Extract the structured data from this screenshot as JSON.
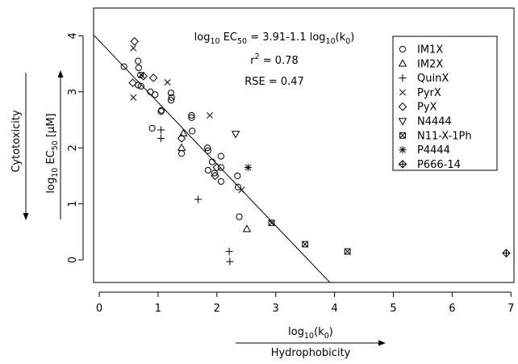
{
  "chart_data": {
    "type": "scatter",
    "xlabel": "log10(k0)",
    "ylabel": "log10 EC50 [μM]",
    "xlim": [
      0,
      7
    ],
    "ylim": [
      0,
      4
    ],
    "xticks": [
      "0",
      "1",
      "2",
      "3",
      "4",
      "5",
      "6",
      "7"
    ],
    "yticks": [
      "0",
      "1",
      "2",
      "3",
      "4"
    ],
    "grid": false,
    "legend_position": "top-right",
    "side_labels": {
      "bottom": "Hydrophobicity",
      "left": "Cytotoxicity"
    },
    "annotations": {
      "equation": "log10 EC50 = 3.91-1.1 log10(k0)",
      "r2": "r2 = 0.78",
      "rse": "RSE = 0.47"
    },
    "fit_line": {
      "intercept": 3.91,
      "slope": -1.1
    },
    "series": [
      {
        "name": "IM1X",
        "marker": "circle",
        "points": [
          [
            0.42,
            3.45
          ],
          [
            0.66,
            3.55
          ],
          [
            0.67,
            3.43
          ],
          [
            0.7,
            3.3
          ],
          [
            0.71,
            3.1
          ],
          [
            0.66,
            3.12
          ],
          [
            0.87,
            3.0
          ],
          [
            0.95,
            2.95
          ],
          [
            1.05,
            2.65
          ],
          [
            1.06,
            2.67
          ],
          [
            1.22,
            2.98
          ],
          [
            1.23,
            2.9
          ],
          [
            1.22,
            2.85
          ],
          [
            0.9,
            2.35
          ],
          [
            1.4,
            1.9
          ],
          [
            1.57,
            2.58
          ],
          [
            1.57,
            2.54
          ],
          [
            1.58,
            2.3
          ],
          [
            1.84,
            2.0
          ],
          [
            1.85,
            1.95
          ],
          [
            1.85,
            1.6
          ],
          [
            1.92,
            1.75
          ],
          [
            2.07,
            1.85
          ],
          [
            2.07,
            1.65
          ],
          [
            1.96,
            1.55
          ],
          [
            2.07,
            1.4
          ],
          [
            2.35,
            1.5
          ],
          [
            2.36,
            1.3
          ],
          [
            2.38,
            0.77
          ]
        ]
      },
      {
        "name": "IM2X",
        "marker": "triangle-up",
        "points": [
          [
            1.4,
            2.0
          ],
          [
            1.43,
            2.26
          ],
          [
            2.51,
            0.55
          ]
        ]
      },
      {
        "name": "QuinX",
        "marker": "plus",
        "points": [
          [
            1.05,
            2.32
          ],
          [
            1.05,
            2.17
          ],
          [
            1.68,
            1.08
          ],
          [
            2.21,
            0.15
          ],
          [
            2.22,
            -0.03
          ]
        ]
      },
      {
        "name": "PyrX",
        "marker": "x",
        "points": [
          [
            0.58,
            3.78
          ],
          [
            0.58,
            2.9
          ],
          [
            0.72,
            3.3
          ],
          [
            1.16,
            3.17
          ],
          [
            1.88,
            2.58
          ],
          [
            2.42,
            1.25
          ]
        ]
      },
      {
        "name": "PyX",
        "marker": "diamond",
        "points": [
          [
            0.6,
            3.9
          ],
          [
            0.57,
            3.16
          ],
          [
            0.75,
            3.28
          ],
          [
            0.92,
            3.25
          ],
          [
            1.4,
            2.17
          ],
          [
            1.97,
            1.5
          ],
          [
            2.0,
            1.65
          ]
        ]
      },
      {
        "name": "N4444",
        "marker": "triangle-down",
        "points": [
          [
            2.32,
            2.25
          ]
        ]
      },
      {
        "name": "N11-X-1Ph",
        "marker": "boxed-x",
        "points": [
          [
            2.93,
            0.66
          ],
          [
            3.5,
            0.28
          ],
          [
            4.22,
            0.15
          ]
        ]
      },
      {
        "name": "P4444",
        "marker": "asterisk",
        "points": [
          [
            2.53,
            1.65
          ]
        ]
      },
      {
        "name": "P666-14",
        "marker": "crossed-diamond",
        "points": [
          [
            6.92,
            0.12
          ]
        ]
      }
    ]
  }
}
